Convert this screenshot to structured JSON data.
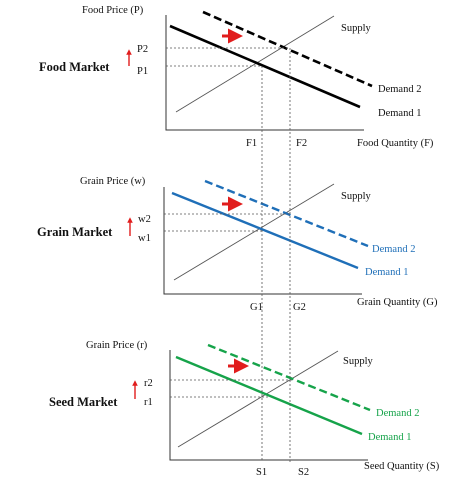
{
  "colors": {
    "food": "#000000",
    "grain": "#1f6fb8",
    "seed": "#16a34a",
    "arrow": "#e11d1d",
    "supply": "#555555"
  },
  "panels": [
    {
      "key": "food",
      "market_label": "Food Market",
      "ylabel": "Food Price (P)",
      "xlabel": "Food Quantity (F)",
      "supply_label": "Supply",
      "demand1_label": "Demand 1",
      "demand2_label": "Demand 2",
      "price1": "P1",
      "price2": "P2",
      "qty1": "F1",
      "qty2": "F2"
    },
    {
      "key": "grain",
      "market_label": "Grain Market",
      "ylabel": "Grain Price (w)",
      "xlabel": "Grain Quantity (G)",
      "supply_label": "Supply",
      "demand1_label": "Demand 1",
      "demand2_label": "Demand 2",
      "price1": "w1",
      "price2": "w2",
      "qty1": "G1",
      "qty2": "G2"
    },
    {
      "key": "seed",
      "market_label": "Seed Market",
      "ylabel": "Grain Price (r)",
      "xlabel": "Seed Quantity (S)",
      "supply_label": "Supply",
      "demand1_label": "Demand 1",
      "demand2_label": "Demand 2",
      "price1": "r1",
      "price2": "r2",
      "qty1": "S1",
      "qty2": "S2"
    }
  ]
}
